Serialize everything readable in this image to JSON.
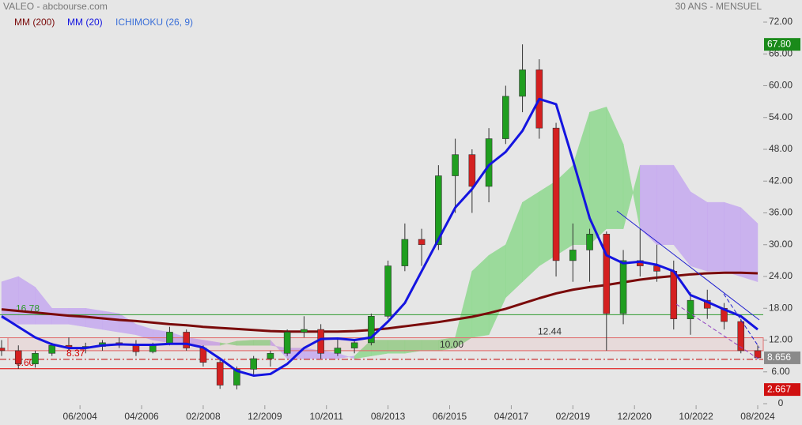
{
  "chart_data": {
    "type": "candlestick",
    "title": "VALEO - abcbourse.com",
    "subtitle": "30 ANS - MENSUEL",
    "x": [
      "02/2002",
      "08/2002",
      "02/2003",
      "08/2003",
      "02/2004",
      "08/2004",
      "02/2005",
      "08/2005",
      "02/2006",
      "08/2006",
      "02/2007",
      "08/2007",
      "02/2008",
      "08/2008",
      "02/2009",
      "08/2009",
      "02/2010",
      "08/2010",
      "02/2011",
      "08/2011",
      "02/2012",
      "08/2012",
      "02/2013",
      "08/2013",
      "02/2014",
      "08/2014",
      "02/2015",
      "08/2015",
      "02/2016",
      "08/2016",
      "02/2017",
      "08/2017",
      "02/2018",
      "08/2018",
      "02/2019",
      "08/2019",
      "02/2020",
      "08/2020",
      "02/2021",
      "08/2021",
      "02/2022",
      "08/2022",
      "02/2023",
      "08/2023",
      "02/2024",
      "08/2024"
    ],
    "open": [
      10.5,
      10,
      7.5,
      9.5,
      11,
      10.5,
      10.8,
      11.5,
      11,
      9.8,
      11.2,
      13.5,
      10.5,
      7.8,
      3.5,
      6.5,
      8.5,
      9.5,
      13.5,
      14,
      9.5,
      10.5,
      11.5,
      16.5,
      26,
      31,
      30,
      43,
      47,
      41,
      50,
      58,
      63,
      52,
      27,
      29,
      32,
      17,
      27,
      26,
      25,
      16,
      19.5,
      18,
      15.5,
      10
    ],
    "high": [
      12,
      11,
      10,
      11.5,
      12.5,
      11.5,
      12,
      12.5,
      12,
      11.5,
      14.5,
      14,
      11,
      8.5,
      7,
      9,
      10,
      14,
      16.5,
      15,
      12.5,
      12,
      17,
      27,
      34,
      33,
      45,
      50,
      48,
      52,
      60,
      67.8,
      65,
      53,
      34,
      33,
      32.5,
      29,
      33,
      30,
      27,
      21,
      21.5,
      19,
      16,
      11
    ],
    "low": [
      9,
      6.6,
      6.8,
      9,
      10,
      9.5,
      10,
      10.5,
      9,
      9.5,
      11,
      10,
      7,
      2.8,
      2.7,
      5.5,
      7,
      9,
      12.5,
      8.5,
      9,
      9.5,
      11,
      16,
      25,
      26,
      29,
      36,
      36,
      38,
      49,
      55,
      50,
      24,
      23,
      23,
      10,
      15,
      24,
      23,
      14,
      13,
      16,
      14,
      9.5,
      8.4
    ],
    "close": [
      10,
      7.5,
      9.5,
      11,
      10.5,
      10.8,
      11.5,
      11,
      9.8,
      11.2,
      13.5,
      10.5,
      7.8,
      3.5,
      6.5,
      8.5,
      9.5,
      13.5,
      14,
      9.5,
      10.5,
      11.5,
      16.5,
      26,
      31,
      30,
      43,
      47,
      41,
      50,
      58,
      63,
      52,
      27,
      29,
      32,
      17,
      27,
      26,
      25,
      16,
      19.5,
      18,
      15.5,
      10,
      8.656
    ],
    "up_color": "#1f9e1f",
    "down_color": "#d42020",
    "series": [
      {
        "name": "MM (200)",
        "color": "#7a0a0a",
        "values": [
          17.8,
          17.5,
          17.2,
          16.9,
          16.6,
          16.4,
          16.1,
          15.8,
          15.6,
          15.3,
          15.0,
          14.8,
          14.5,
          14.3,
          14.1,
          13.9,
          13.7,
          13.6,
          13.6,
          13.6,
          13.6,
          13.7,
          13.9,
          14.2,
          14.6,
          15.0,
          15.4,
          15.9,
          16.4,
          17.1,
          17.9,
          18.9,
          19.9,
          20.8,
          21.5,
          22.0,
          22.4,
          22.9,
          23.4,
          23.8,
          24.1,
          24.4,
          24.6,
          24.7,
          24.7,
          24.6
        ]
      },
      {
        "name": "MM (20)",
        "color": "#1414e0",
        "values": [
          16.5,
          14.5,
          12.5,
          11.2,
          10.5,
          10.5,
          11.0,
          11.2,
          11.1,
          11.1,
          11.3,
          11.3,
          10.6,
          8.5,
          6.2,
          5.3,
          5.6,
          7.5,
          10.5,
          12.2,
          12.3,
          12.0,
          12.5,
          15.5,
          19,
          25,
          31,
          37,
          40.5,
          45,
          47.5,
          51.5,
          57.5,
          56.5,
          46,
          35,
          28,
          26.5,
          26.8,
          26.2,
          25,
          20.5,
          19.2,
          17.8,
          16.5,
          14
        ]
      }
    ],
    "ichimoku": {
      "name": "ICHIMOKU (26, 9)",
      "color": "#3a6fd8",
      "bull_color": "#8fd88f",
      "bear_color": "#c6a9f0",
      "span_a": [
        16,
        15,
        15,
        15,
        15,
        14.5,
        14,
        13.5,
        13,
        12,
        11.5,
        11,
        11,
        11,
        11.8,
        12,
        12,
        8.5,
        8.5,
        8.5,
        8.5,
        9,
        12,
        12,
        12,
        12,
        12,
        12.5,
        25,
        28,
        30,
        38,
        40,
        42,
        45,
        55,
        56,
        49,
        33,
        30,
        30,
        26,
        25,
        25,
        24,
        23
      ],
      "span_b": [
        23,
        24,
        22,
        18,
        18,
        18,
        17.5,
        17,
        15,
        14,
        13.5,
        12.5,
        12,
        11.5,
        11,
        11,
        11,
        10.5,
        10.5,
        10,
        9.5,
        8.5,
        9,
        9.5,
        9.5,
        10,
        10,
        10.5,
        12.5,
        13,
        20,
        23,
        26,
        28,
        30,
        30,
        33,
        33,
        45,
        45,
        45,
        40,
        38,
        38,
        37,
        34
      ]
    },
    "levels": [
      {
        "value": 16.78,
        "label": "16.78",
        "color": "#2e9a2e",
        "label_color": "#2e9a2e",
        "style": "solid"
      },
      {
        "value": 12.44,
        "label": "12.44",
        "color": "#e07070",
        "label_color": "#333333",
        "style": "solid"
      },
      {
        "value": 10,
        "label": "10.00",
        "color": "#e07070",
        "label_color": "#333333",
        "style": "solid"
      },
      {
        "value": 8.37,
        "label": "8.37",
        "color": "#c00000",
        "label_color": "#d00000",
        "style": "dashdot"
      },
      {
        "value": 6.6,
        "label": "6.60",
        "color": "#e00000",
        "label_color": "#d00000",
        "style": "solid"
      }
    ],
    "price_labels": [
      {
        "value": 67.8,
        "label": "67.80",
        "color": "#1a8a1a"
      },
      {
        "value": 8.656,
        "label": "8.656",
        "color": "#8a8a8a"
      },
      {
        "value": 2.667,
        "label": "2.667",
        "color": "#d01010"
      }
    ],
    "ylim": [
      0,
      72
    ],
    "yticks": [
      0,
      {
        "value": 6,
        "label": "6.00"
      },
      {
        "value": 12,
        "label": "12.00"
      },
      {
        "value": 18,
        "label": "18.00"
      },
      {
        "value": 24,
        "label": "24.00"
      },
      {
        "value": 30,
        "label": "30.00"
      },
      {
        "value": 36,
        "label": "36.00"
      },
      {
        "value": 42,
        "label": "42.00"
      },
      {
        "value": 48,
        "label": "48.00"
      },
      {
        "value": 54,
        "label": "54.00"
      },
      {
        "value": 60,
        "label": "60.00"
      },
      {
        "value": 66,
        "label": "66.00"
      },
      {
        "value": 72,
        "label": "72.00"
      }
    ],
    "xticks": [
      "06/2004",
      "04/2006",
      "02/2008",
      "12/2009",
      "10/2011",
      "08/2013",
      "06/2015",
      "04/2017",
      "02/2019",
      "12/2020",
      "10/2022",
      "08/2024"
    ]
  }
}
